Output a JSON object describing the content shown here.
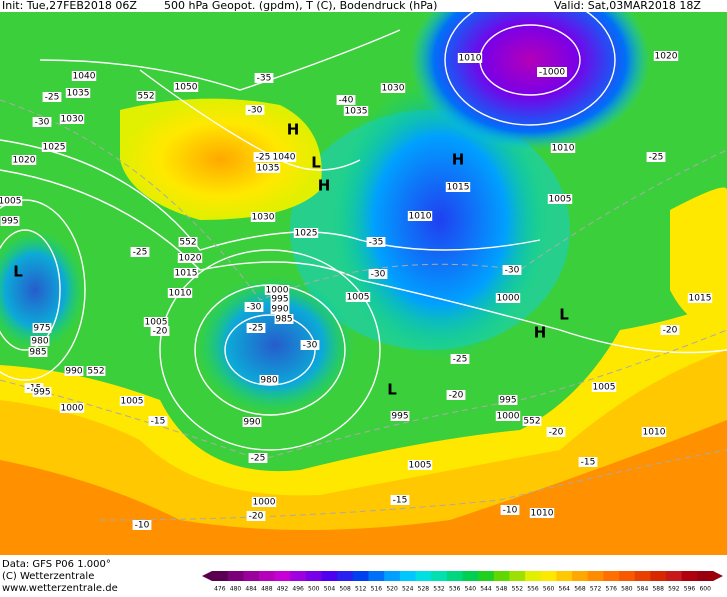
{
  "header": {
    "init": "Init: Tue,27FEB2018 06Z",
    "title": "500 hPa Geopot. (gpdm), T (C), Bodendruck (hPa)",
    "valid": "Valid: Sat,03MAR2018 18Z"
  },
  "footer": {
    "data": "Data: GFS P06 1.000°",
    "copyright": "(C) Wetterzentrale",
    "url": "www.wetterzentrale.de"
  },
  "map_labels": [
    "1040",
    "1035",
    "1030",
    "-25",
    "-30",
    "1025",
    "1020",
    "1005",
    "995",
    "L",
    "975",
    "980",
    "985",
    "990",
    "552",
    "-15",
    "995",
    "1000",
    "1005",
    "-15",
    "1005",
    "-20",
    "-25",
    "1010",
    "1015",
    "1020",
    "552",
    "1025",
    "1030",
    "1035",
    "1040",
    "-25",
    "-30",
    "H",
    "H",
    "L",
    "552",
    "1050",
    "-35",
    "-40",
    "1035",
    "1030",
    "-35",
    "-30",
    "1010",
    "-1000",
    "1020",
    "1010",
    "H",
    "1015",
    "1010",
    "1005",
    "-25",
    "-30",
    "1005",
    "1000",
    "H",
    "L",
    "1015",
    "-20",
    "1000",
    "995",
    "990",
    "985",
    "-30",
    "-25",
    "-30",
    "980",
    "990",
    "-25",
    "L",
    "995",
    "-20",
    "-25",
    "995",
    "1000",
    "552",
    "-20",
    "1005",
    "1010",
    "-15",
    "1005",
    "-15",
    "1000",
    "-20",
    "-10",
    "-10",
    "1010"
  ],
  "colorbar": {
    "labels": [
      476,
      480,
      484,
      488,
      492,
      496,
      500,
      504,
      508,
      512,
      516,
      520,
      524,
      528,
      532,
      536,
      540,
      544,
      548,
      552,
      556,
      560,
      564,
      568,
      572,
      576,
      580,
      584,
      588,
      592,
      596,
      600
    ],
    "colors": [
      "#5a0050",
      "#7a0078",
      "#9a009a",
      "#b400b8",
      "#c800d8",
      "#a000e0",
      "#7800e8",
      "#5000f0",
      "#2820f0",
      "#0040f0",
      "#0070f8",
      "#00a0ff",
      "#00c8ff",
      "#00e0e0",
      "#00e0b0",
      "#00d880",
      "#00d050",
      "#20d020",
      "#60d800",
      "#a0e000",
      "#e0f000",
      "#ffe800",
      "#ffc800",
      "#ffa800",
      "#ff8c00",
      "#ff7000",
      "#f85800",
      "#e84000",
      "#d82800",
      "#c81818",
      "#b00010",
      "#980010"
    ]
  }
}
